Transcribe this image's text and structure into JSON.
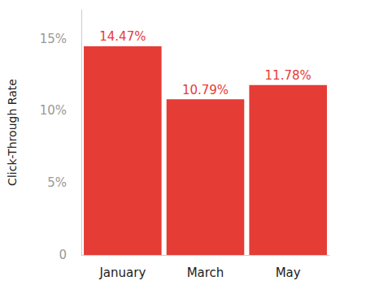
{
  "chart_data": {
    "type": "bar",
    "categories": [
      "January",
      "March",
      "May"
    ],
    "values": [
      14.47,
      10.79,
      11.78
    ],
    "value_labels": [
      "14.47%",
      "10.79%",
      "11.78%"
    ],
    "data_labels": true,
    "color": "#e53c36",
    "y_label": "Click-Through Rate",
    "ylim": [
      0,
      17
    ],
    "yticks": [
      0,
      {
        "value": 5,
        "label": "5%"
      },
      {
        "value": 10,
        "label": "10%"
      },
      {
        "value": 15,
        "label": "15%"
      }
    ],
    "grid": false
  }
}
